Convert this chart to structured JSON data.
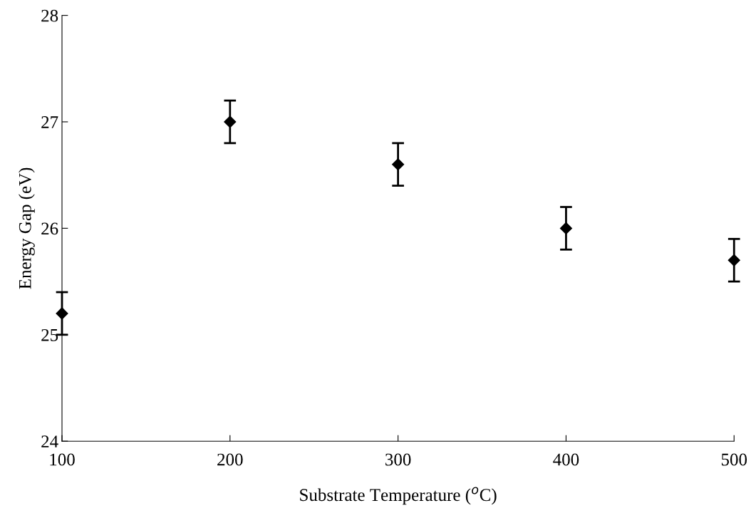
{
  "chart_data": {
    "type": "scatter",
    "xlabel": "Substrate Temperature ($^{o}$C)",
    "ylabel": "Energy Gap (eV)",
    "x": [
      100,
      200,
      300,
      400,
      500
    ],
    "series": [
      {
        "color": "#000000",
        "values": [
          25.2,
          27.0,
          26.6,
          26.0,
          25.7
        ],
        "errors": [
          0.2,
          0.2,
          0.2,
          0.2,
          0.2
        ]
      }
    ],
    "xlim": [
      100,
      500
    ],
    "xticks": [
      100,
      200,
      300,
      400,
      500
    ],
    "ylim": [
      24,
      28
    ],
    "yticks": [
      24,
      25,
      26,
      27,
      28
    ],
    "grid": false,
    "legend": false,
    "marker": "diamond"
  }
}
